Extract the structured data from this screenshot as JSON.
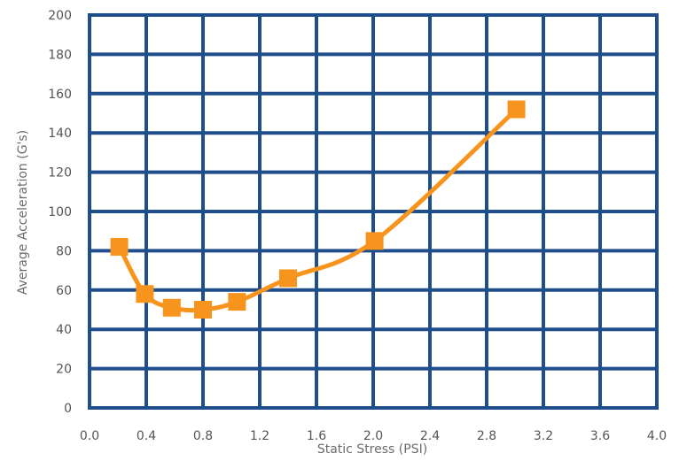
{
  "chart_data": {
    "type": "line",
    "title": "",
    "xlabel": "Static Stress (PSI)",
    "ylabel": "Average Acceleration (G's)",
    "xlim": [
      0.0,
      4.0
    ],
    "ylim": [
      0,
      200
    ],
    "x_ticks": [
      "0.0",
      "0.4",
      "0.8",
      "1.2",
      "1.6",
      "2.0",
      "2.4",
      "2.8",
      "3.2",
      "3.6",
      "4.0"
    ],
    "y_ticks": [
      "0",
      "20",
      "40",
      "60",
      "80",
      "100",
      "120",
      "140",
      "160",
      "180",
      "200"
    ],
    "grid": true,
    "legend": "none",
    "colors": {
      "grid": "#1f4e8c",
      "series": "#f7941d",
      "text": "#555555"
    },
    "series": [
      {
        "x": [
          0.21,
          0.39,
          0.58,
          0.8,
          1.04,
          1.4,
          2.01,
          3.01
        ],
        "y": [
          82,
          58,
          51,
          50,
          54,
          66,
          85,
          152
        ]
      }
    ]
  }
}
